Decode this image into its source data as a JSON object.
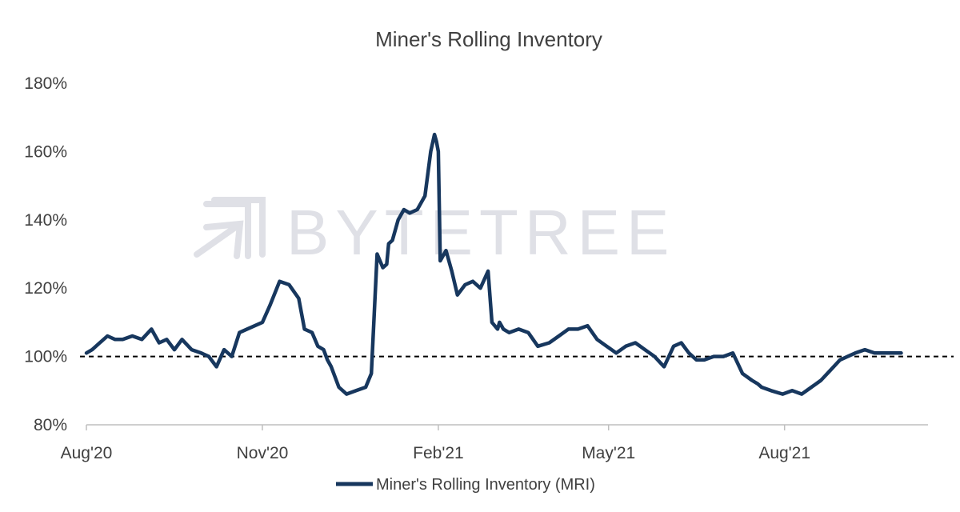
{
  "chart_data": {
    "type": "line",
    "title": "Miner's Rolling Inventory",
    "watermark": "BYTETREE",
    "xlabel": "",
    "ylabel": "",
    "ylim": [
      80,
      180
    ],
    "xlim": [
      "2020-08-01",
      "2021-10-15"
    ],
    "y_ticks": [
      80,
      100,
      120,
      140,
      160,
      180
    ],
    "y_tick_labels": [
      "80%",
      "100%",
      "120%",
      "140%",
      "160%",
      "180%"
    ],
    "x_ticks": [
      "2020-08-01",
      "2020-11-01",
      "2021-02-01",
      "2021-05-01",
      "2021-08-01"
    ],
    "x_tick_labels": [
      "Aug'20",
      "Nov'20",
      "Feb'21",
      "May'21",
      "Aug'21"
    ],
    "grid": false,
    "reference_line": {
      "y": 100,
      "style": "dashed",
      "color": "#000000"
    },
    "legend_position": "bottom-center",
    "series": [
      {
        "name": "Miner's Rolling Inventory (MRI)",
        "color": "#17375e",
        "x": [
          "2020-08-01",
          "2020-08-04",
          "2020-08-08",
          "2020-08-12",
          "2020-08-16",
          "2020-08-20",
          "2020-08-25",
          "2020-08-30",
          "2020-09-04",
          "2020-09-08",
          "2020-09-12",
          "2020-09-16",
          "2020-09-20",
          "2020-09-25",
          "2020-09-30",
          "2020-10-04",
          "2020-10-08",
          "2020-10-12",
          "2020-10-16",
          "2020-10-20",
          "2020-10-24",
          "2020-10-28",
          "2020-11-01",
          "2020-11-05",
          "2020-11-10",
          "2020-11-15",
          "2020-11-20",
          "2020-11-23",
          "2020-11-27",
          "2020-11-30",
          "2020-12-03",
          "2020-12-05",
          "2020-12-07",
          "2020-12-11",
          "2020-12-15",
          "2020-12-20",
          "2020-12-25",
          "2020-12-28",
          "2020-12-31",
          "2021-01-03",
          "2021-01-05",
          "2021-01-06",
          "2021-01-08",
          "2021-01-11",
          "2021-01-14",
          "2021-01-17",
          "2021-01-21",
          "2021-01-25",
          "2021-01-28",
          "2021-01-30",
          "2021-01-31",
          "2021-02-01",
          "2021-02-02",
          "2021-02-05",
          "2021-02-08",
          "2021-02-11",
          "2021-02-15",
          "2021-02-19",
          "2021-02-23",
          "2021-02-27",
          "2021-03-01",
          "2021-03-04",
          "2021-03-05",
          "2021-03-07",
          "2021-03-10",
          "2021-03-15",
          "2021-03-20",
          "2021-03-25",
          "2021-03-31",
          "2021-04-05",
          "2021-04-10",
          "2021-04-15",
          "2021-04-20",
          "2021-04-25",
          "2021-04-30",
          "2021-05-05",
          "2021-05-10",
          "2021-05-15",
          "2021-05-20",
          "2021-05-25",
          "2021-05-30",
          "2021-06-04",
          "2021-06-08",
          "2021-06-12",
          "2021-06-16",
          "2021-06-20",
          "2021-06-25",
          "2021-06-30",
          "2021-07-05",
          "2021-07-10",
          "2021-07-15",
          "2021-07-18",
          "2021-07-20",
          "2021-07-25",
          "2021-07-31",
          "2021-08-05",
          "2021-08-10",
          "2021-08-15",
          "2021-08-20",
          "2021-08-25",
          "2021-08-30",
          "2021-09-03",
          "2021-09-07",
          "2021-09-12",
          "2021-09-17",
          "2021-09-22",
          "2021-09-26",
          "2021-10-01"
        ],
        "y": [
          101,
          102,
          104,
          106,
          105,
          105,
          106,
          105,
          108,
          104,
          105,
          102,
          105,
          102,
          101,
          100,
          97,
          102,
          100,
          107,
          108,
          109,
          110,
          115,
          122,
          121,
          117,
          108,
          107,
          103,
          102,
          99,
          97,
          91,
          89,
          90,
          91,
          95,
          130,
          126,
          127,
          133,
          134,
          140,
          143,
          142,
          143,
          147,
          160,
          165,
          163,
          160,
          128,
          131,
          125,
          118,
          121,
          122,
          120,
          125,
          110,
          108,
          110,
          108,
          107,
          108,
          107,
          103,
          104,
          106,
          108,
          108,
          109,
          105,
          103,
          101,
          103,
          104,
          102,
          100,
          97,
          103,
          104,
          101,
          99,
          99,
          100,
          100,
          101,
          95,
          93,
          92,
          91,
          90,
          89,
          90,
          89,
          91,
          93,
          96,
          99,
          100,
          101,
          102,
          101,
          101,
          101,
          101
        ]
      }
    ]
  }
}
